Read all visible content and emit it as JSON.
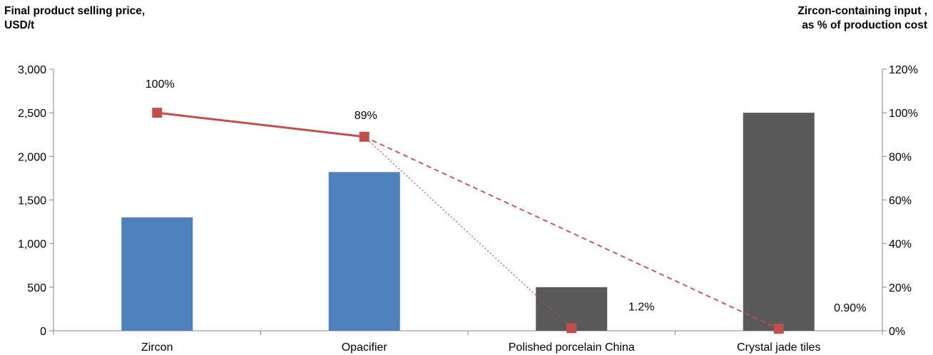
{
  "chart_data": {
    "type": "bar",
    "categories": [
      "Zircon",
      "Opacifier",
      "Polished porcelain China",
      "Crystal jade tiles"
    ],
    "series": [
      {
        "type": "bar",
        "axis": "left",
        "values": [
          1300,
          1820,
          500,
          2500
        ],
        "colors": [
          "#4f81bd",
          "#4f81bd",
          "#595959",
          "#595959"
        ]
      },
      {
        "type": "line",
        "axis": "right",
        "values": [
          100,
          89,
          1.2,
          0.9
        ],
        "labels": [
          "100%",
          "89%",
          "1.2%",
          "0.90%"
        ],
        "color": "#c0504d"
      }
    ],
    "connectors": [
      {
        "from": 0,
        "to": 1,
        "style": "solid"
      },
      {
        "from": 1,
        "to": 2,
        "style": "dotted"
      },
      {
        "from": 1,
        "to": 3,
        "style": "dashed"
      }
    ],
    "ylabel": "Final product selling price,\nUSD/t",
    "y2label": "Zircon-containing input ,\nas % of production cost",
    "ylim": [
      0,
      3000
    ],
    "y2lim": [
      0,
      120
    ],
    "yticks": [
      "0",
      "500",
      "1,000",
      "1,500",
      "2,000",
      "2,500",
      "3,000"
    ],
    "y2ticks": [
      "0%",
      "20%",
      "40%",
      "60%",
      "80%",
      "100%",
      "120%"
    ],
    "grid": false,
    "legend": "none"
  }
}
